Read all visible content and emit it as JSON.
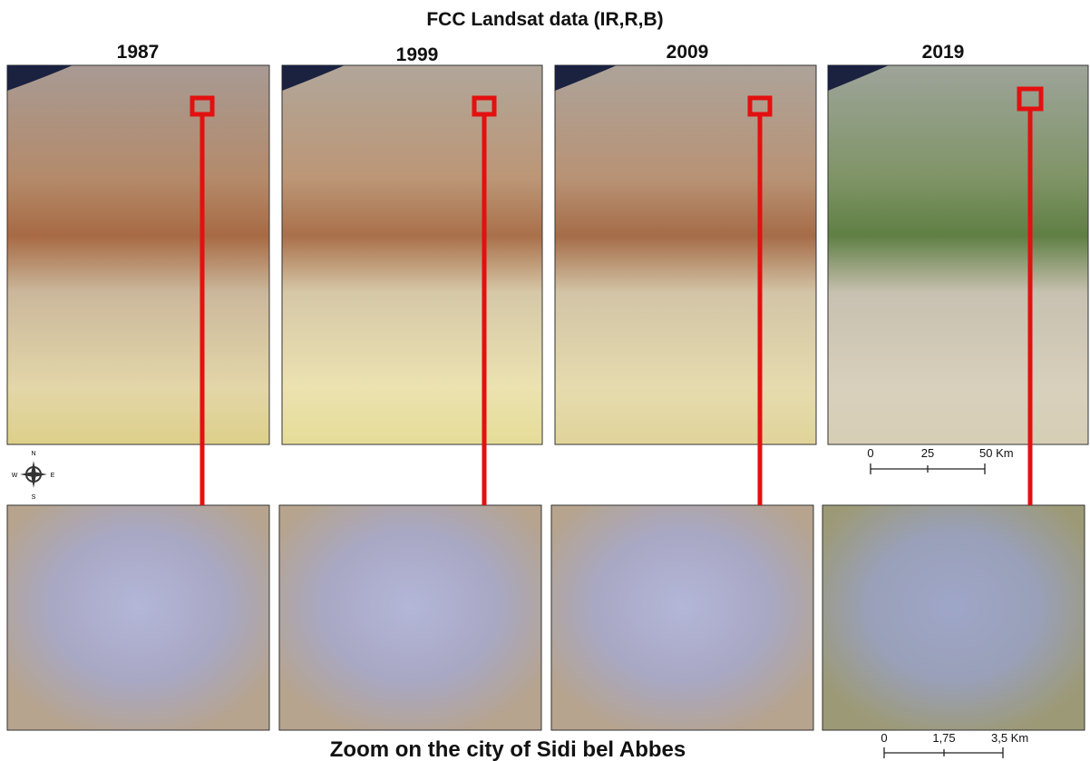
{
  "title": "FCC Landsat data (IR,R,B)",
  "panels": [
    {
      "year": "1987"
    },
    {
      "year": "1999"
    },
    {
      "year": "2009"
    },
    {
      "year": "2019"
    }
  ],
  "scale_bar_regional": {
    "labels": [
      "0",
      "25",
      "50 Km"
    ]
  },
  "compass": {
    "north": "N",
    "east": "E",
    "south": "S",
    "west": "W"
  },
  "zoom_caption": "Zoom on the city of Sidi bel Abbes",
  "scale_bar_zoom": {
    "labels": [
      "0",
      "1,75",
      "3,5 Km"
    ]
  }
}
